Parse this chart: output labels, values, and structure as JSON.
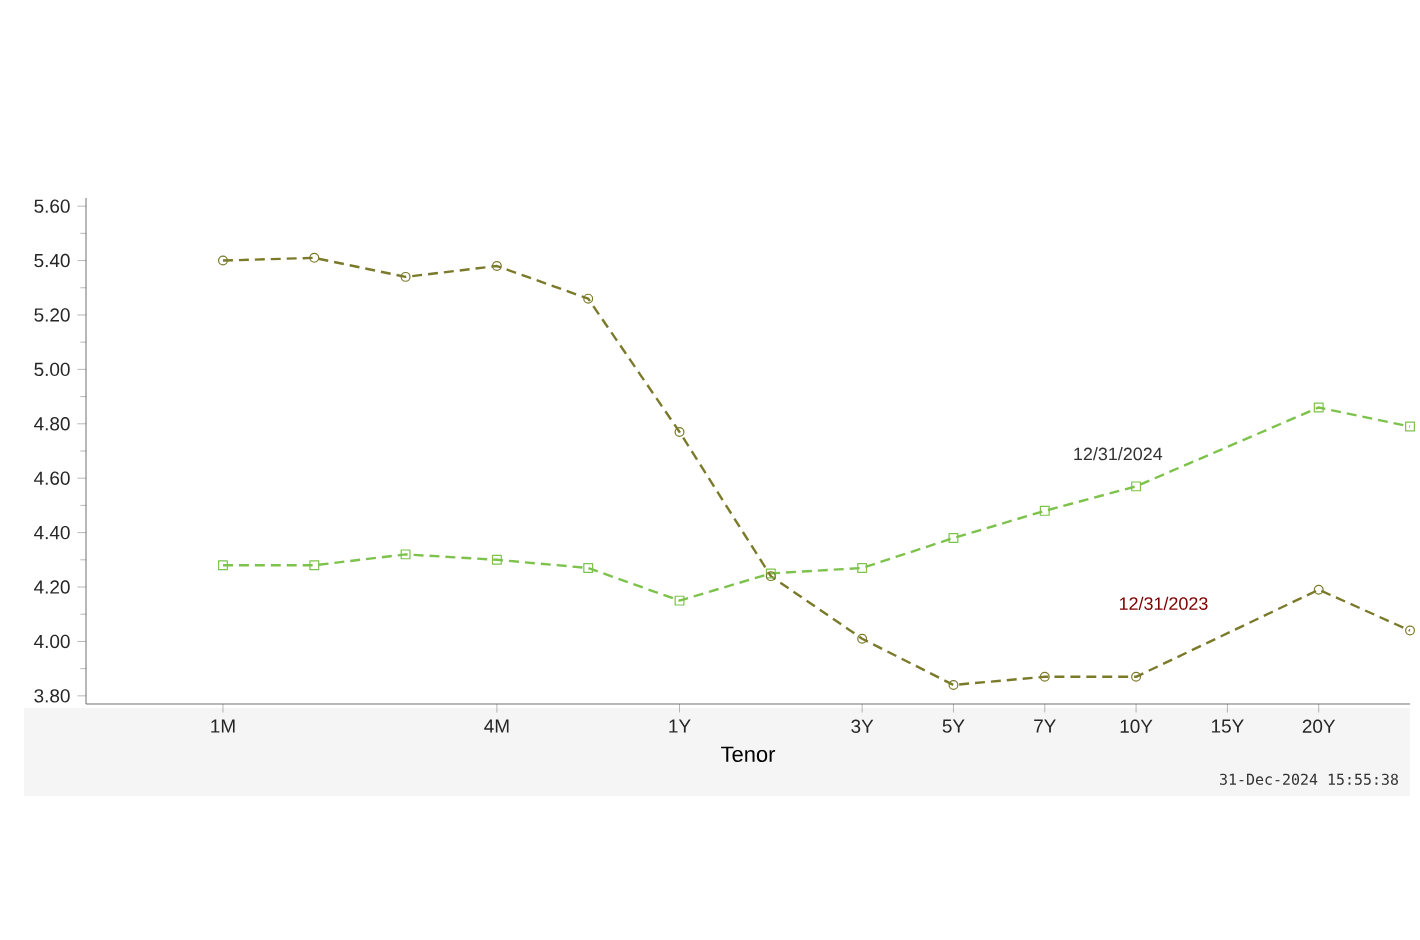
{
  "chart_data": {
    "type": "line",
    "xlabel": "Tenor",
    "categories": [
      "1M",
      null,
      null,
      "4M",
      null,
      "1Y",
      null,
      "3Y",
      "5Y",
      "7Y",
      "10Y",
      "15Y",
      "20Y",
      null
    ],
    "series": [
      {
        "name": "12/31/2024",
        "color": "#7dc24b",
        "marker": "square",
        "line_style": "dashed",
        "values": [
          4.28,
          4.28,
          4.32,
          4.3,
          4.27,
          4.15,
          4.25,
          4.27,
          4.38,
          4.48,
          4.57,
          null,
          4.86,
          4.79
        ]
      },
      {
        "name": "12/31/2023",
        "color": "#7a7a2a",
        "marker": "circle",
        "line_style": "dashed",
        "values": [
          5.4,
          5.41,
          5.34,
          5.38,
          5.26,
          4.77,
          4.24,
          4.01,
          3.84,
          3.87,
          3.87,
          null,
          4.19,
          4.04
        ]
      }
    ],
    "ylim": [
      3.77,
      5.63
    ],
    "yticks": [
      {
        "value": 3.8,
        "label": "3.80"
      },
      {
        "value": 4.0,
        "label": "4.00"
      },
      {
        "value": 4.2,
        "label": "4.20"
      },
      {
        "value": 4.4,
        "label": "4.40"
      },
      {
        "value": 4.6,
        "label": "4.60"
      },
      {
        "value": 4.8,
        "label": "4.80"
      },
      {
        "value": 5.0,
        "label": "5.00"
      },
      {
        "value": 5.2,
        "label": "5.20"
      },
      {
        "value": 5.4,
        "label": "5.40"
      },
      {
        "value": 5.6,
        "label": "5.60"
      }
    ],
    "grid": false,
    "annotations": [
      "31-Dec-2024 15:55:38"
    ]
  }
}
